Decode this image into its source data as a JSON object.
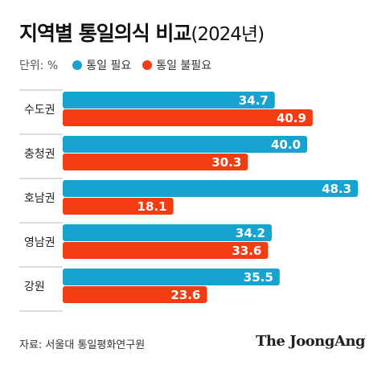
{
  "title": {
    "main": "지역별 통일의식 비교",
    "sub": "(2024년)"
  },
  "legend": {
    "unit": "단위: %",
    "items": [
      {
        "label": "통일 필요",
        "color": "#16a3d1"
      },
      {
        "label": "통일 불필요",
        "color": "#f23d12"
      }
    ]
  },
  "source": "자료: 서울대 통일평화연구원",
  "brand": "The JoongAng",
  "chart_data": {
    "type": "bar",
    "orientation": "horizontal",
    "categories": [
      "수도권",
      "충청권",
      "호남권",
      "영남권",
      "강원"
    ],
    "series": [
      {
        "name": "통일 필요",
        "color": "#16a3d1",
        "values": [
          34.7,
          40.0,
          48.3,
          34.2,
          35.5
        ],
        "labels": [
          "34.7",
          "40.0",
          "48.3",
          "34.2",
          "35.5"
        ]
      },
      {
        "name": "통일 불필요",
        "color": "#f23d12",
        "values": [
          40.9,
          30.3,
          18.1,
          33.6,
          23.6
        ],
        "labels": [
          "40.9",
          "30.3",
          "18.1",
          "33.6",
          "23.6"
        ]
      }
    ],
    "unit": "%",
    "legend": "top-left",
    "grid": false
  }
}
